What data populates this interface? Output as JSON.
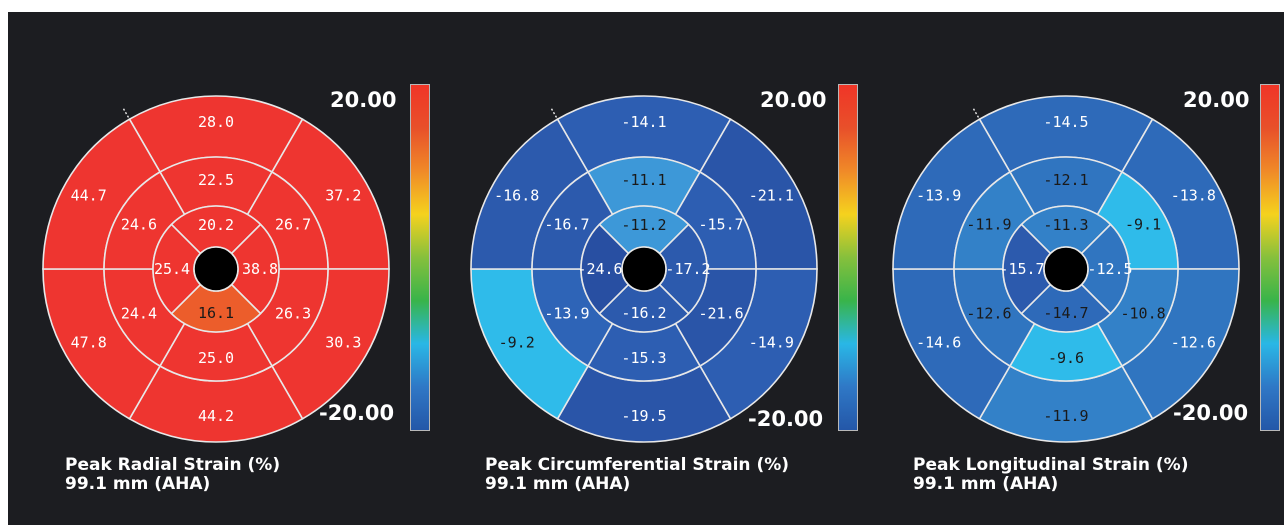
{
  "scale": {
    "max_label": "20.00",
    "min_label": "-20.00"
  },
  "colorbar_gradient": [
    "#f03527",
    "#e8502a",
    "#f08a28",
    "#f5d21e",
    "#86c03c",
    "#39b44a",
    "#29b7e6",
    "#2f78c6",
    "#2457a8"
  ],
  "panels": [
    {
      "caption_line1": "Peak Radial Strain (%)",
      "caption_line2": "99.1 mm (AHA)",
      "basal": [
        {
          "text": "28.0",
          "color": "#ee3530",
          "text_color": "#ffffff"
        },
        {
          "text": "37.2",
          "color": "#ee3530",
          "text_color": "#ffffff"
        },
        {
          "text": "30.3",
          "color": "#ee3530",
          "text_color": "#ffffff"
        },
        {
          "text": "44.2",
          "color": "#ee3530",
          "text_color": "#ffffff"
        },
        {
          "text": "47.8",
          "color": "#ee3530",
          "text_color": "#ffffff"
        },
        {
          "text": "44.7",
          "color": "#ee3530",
          "text_color": "#ffffff"
        }
      ],
      "mid": [
        {
          "text": "22.5",
          "color": "#ee3530",
          "text_color": "#ffffff"
        },
        {
          "text": "26.7",
          "color": "#ee3530",
          "text_color": "#ffffff"
        },
        {
          "text": "26.3",
          "color": "#ee3530",
          "text_color": "#ffffff"
        },
        {
          "text": "25.0",
          "color": "#ee3530",
          "text_color": "#ffffff"
        },
        {
          "text": "24.4",
          "color": "#ee3530",
          "text_color": "#ffffff"
        },
        {
          "text": "24.6",
          "color": "#ee3530",
          "text_color": "#ffffff"
        }
      ],
      "apical": [
        {
          "text": "20.2",
          "color": "#ee3530",
          "text_color": "#ffffff"
        },
        {
          "text": "38.8",
          "color": "#ee3530",
          "text_color": "#ffffff"
        },
        {
          "text": "16.1",
          "color": "#ec5d2b",
          "text_color": "#1a1a1a"
        },
        {
          "text": "25.4",
          "color": "#ee3530",
          "text_color": "#ffffff"
        }
      ]
    },
    {
      "caption_line1": "Peak Circumferential Strain (%)",
      "caption_line2": "99.1 mm (AHA)",
      "basal": [
        {
          "text": "-14.1",
          "color": "#2d5eb2",
          "text_color": "#ffffff"
        },
        {
          "text": "-21.1",
          "color": "#2a55a8",
          "text_color": "#ffffff"
        },
        {
          "text": "-14.9",
          "color": "#2d5eb2",
          "text_color": "#ffffff"
        },
        {
          "text": "-19.5",
          "color": "#2a55a8",
          "text_color": "#ffffff"
        },
        {
          "text": "-9.2",
          "color": "#2fbbea",
          "text_color": "#1a1a1a"
        },
        {
          "text": "-16.8",
          "color": "#2c5aad",
          "text_color": "#ffffff"
        }
      ],
      "mid": [
        {
          "text": "-11.1",
          "color": "#3d98d8",
          "text_color": "#1a1a1a"
        },
        {
          "text": "-15.7",
          "color": "#2d5eb2",
          "text_color": "#ffffff"
        },
        {
          "text": "-21.6",
          "color": "#2a55a8",
          "text_color": "#ffffff"
        },
        {
          "text": "-15.3",
          "color": "#2d5eb2",
          "text_color": "#ffffff"
        },
        {
          "text": "-13.9",
          "color": "#2e64b7",
          "text_color": "#ffffff"
        },
        {
          "text": "-16.7",
          "color": "#2c5aad",
          "text_color": "#ffffff"
        }
      ],
      "apical": [
        {
          "text": "-11.2",
          "color": "#3d98d8",
          "text_color": "#1a1a1a"
        },
        {
          "text": "-17.2",
          "color": "#2c5aad",
          "text_color": "#ffffff"
        },
        {
          "text": "-16.2",
          "color": "#2c5aad",
          "text_color": "#ffffff"
        },
        {
          "text": "-24.6",
          "color": "#284fa2",
          "text_color": "#ffffff"
        }
      ]
    },
    {
      "caption_line1": "Peak Longitudinal Strain (%)",
      "caption_line2": "99.1 mm (AHA)",
      "basal": [
        {
          "text": "-14.5",
          "color": "#2e6ab9",
          "text_color": "#ffffff"
        },
        {
          "text": "-13.8",
          "color": "#2e6ab9",
          "text_color": "#ffffff"
        },
        {
          "text": "-12.6",
          "color": "#3075c0",
          "text_color": "#ffffff"
        },
        {
          "text": "-11.9",
          "color": "#3381c8",
          "text_color": "#1a1a1a"
        },
        {
          "text": "-14.6",
          "color": "#2e6ab9",
          "text_color": "#ffffff"
        },
        {
          "text": "-13.9",
          "color": "#2e6ab9",
          "text_color": "#ffffff"
        }
      ],
      "mid": [
        {
          "text": "-12.1",
          "color": "#3075c0",
          "text_color": "#1a1a1a"
        },
        {
          "text": "-9.1",
          "color": "#2fbbea",
          "text_color": "#1a1a1a"
        },
        {
          "text": "-10.8",
          "color": "#3381c8",
          "text_color": "#1a1a1a"
        },
        {
          "text": "-9.6",
          "color": "#2fbbea",
          "text_color": "#1a1a1a"
        },
        {
          "text": "-12.6",
          "color": "#3075c0",
          "text_color": "#1a1a1a"
        },
        {
          "text": "-11.9",
          "color": "#3381c8",
          "text_color": "#1a1a1a"
        }
      ],
      "apical": [
        {
          "text": "-11.3",
          "color": "#3381c8",
          "text_color": "#1a1a1a"
        },
        {
          "text": "-12.5",
          "color": "#3075c0",
          "text_color": "#ffffff"
        },
        {
          "text": "-14.7",
          "color": "#2e6ab9",
          "text_color": "#1a1a1a"
        },
        {
          "text": "-15.7",
          "color": "#2c5aad",
          "text_color": "#ffffff"
        }
      ]
    }
  ]
}
